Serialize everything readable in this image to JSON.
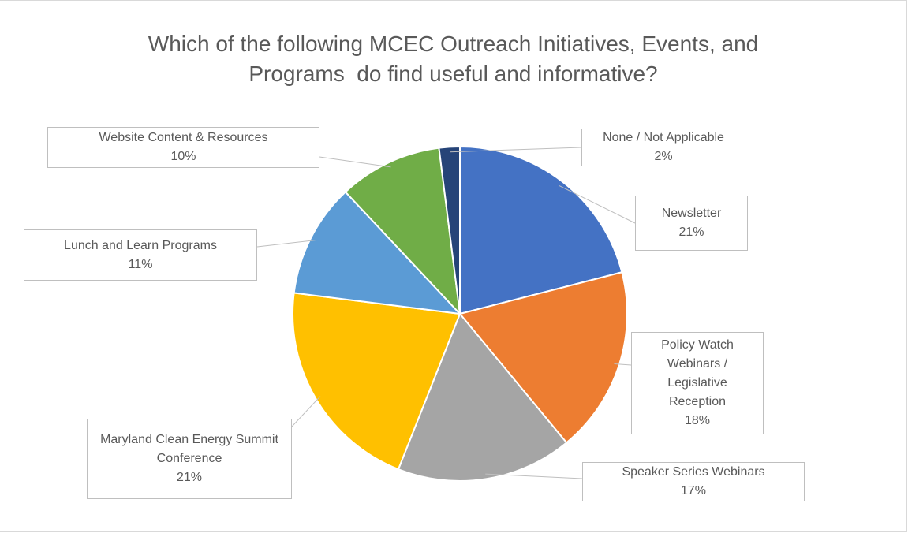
{
  "chart_data": {
    "type": "pie",
    "title": "Which of the following MCEC Outreach Initiatives, Events, and Programs  do find useful and informative?",
    "categories": [
      "Newsletter",
      "Policy Watch Webinars / Legislative Reception",
      "Speaker Series Webinars",
      "Maryland Clean Energy Summit Conference",
      "Lunch and Learn Programs",
      "Website Content & Resources",
      "None / Not Applicable"
    ],
    "values": [
      21,
      18,
      17,
      21,
      11,
      10,
      2
    ],
    "value_labels": [
      "21%",
      "18%",
      "17%",
      "21%",
      "11%",
      "10%",
      "2%"
    ],
    "colors": [
      "#4472c4",
      "#ed7d31",
      "#a5a5a5",
      "#ffc000",
      "#5b9bd5",
      "#70ad47",
      "#264478"
    ]
  }
}
